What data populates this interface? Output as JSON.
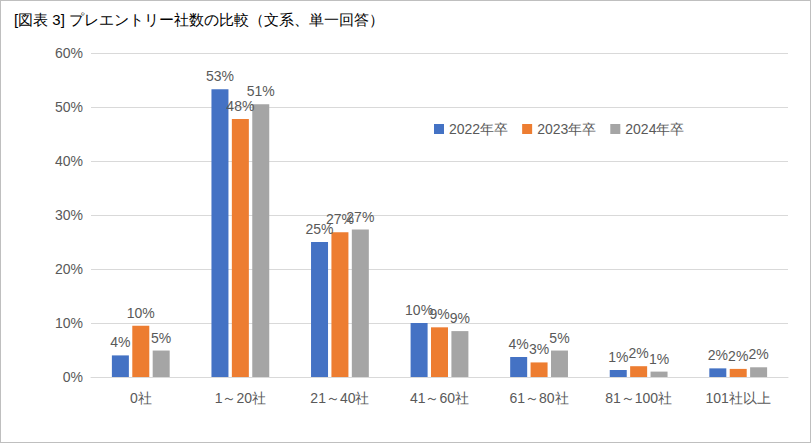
{
  "chart_data": {
    "type": "bar",
    "title": "[図表 3] プレエントリー社数の比較（文系、単一回答）",
    "categories": [
      "0社",
      "1～20社",
      "21～40社",
      "41～60社",
      "61～80社",
      "81～100社",
      "101社以上"
    ],
    "series": [
      {
        "name": "2022年卒",
        "color": "#4472c4",
        "values": [
          4.0,
          53.3,
          25.0,
          10.0,
          3.7,
          1.3,
          1.6
        ],
        "value_labels": [
          "4%",
          "53%",
          "25%",
          "10%",
          "4%",
          "1%",
          "2%"
        ]
      },
      {
        "name": "2023年卒",
        "color": "#ed7d31",
        "values": [
          9.5,
          47.8,
          26.8,
          9.2,
          2.7,
          2.0,
          1.5
        ],
        "value_labels": [
          "10%",
          "48%",
          "27%",
          "9%",
          "3%",
          "2%",
          "2%"
        ]
      },
      {
        "name": "2024年卒",
        "color": "#a5a5a5",
        "values": [
          4.9,
          50.5,
          27.3,
          8.5,
          4.9,
          1.0,
          1.8
        ],
        "value_labels": [
          "5%",
          "51%",
          "27%",
          "9%",
          "5%",
          "1%",
          "2%"
        ]
      }
    ],
    "ylim": [
      0,
      60
    ],
    "yticks": [
      {
        "value": 0,
        "label": "0%"
      },
      {
        "value": 10,
        "label": "10%"
      },
      {
        "value": 20,
        "label": "20%"
      },
      {
        "value": 30,
        "label": "30%"
      },
      {
        "value": 40,
        "label": "40%"
      },
      {
        "value": 50,
        "label": "50%"
      },
      {
        "value": 60,
        "label": "60%"
      }
    ],
    "grid": true,
    "legend": "upper right",
    "data_labels": true
  }
}
